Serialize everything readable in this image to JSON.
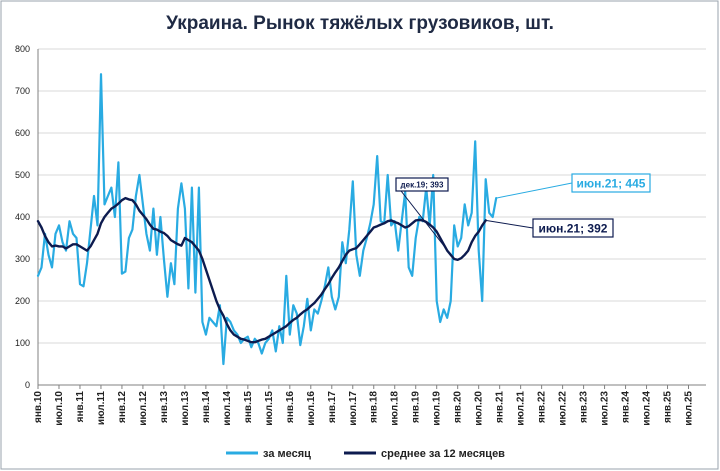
{
  "chart_data": {
    "type": "line",
    "title": "Украина. Рынок тяжёлых грузовиков, шт.",
    "ylim": [
      0,
      800
    ],
    "yticks": [
      "0",
      "100",
      "200",
      "300",
      "400",
      "500",
      "600",
      "700",
      "800"
    ],
    "xticks": [
      "янв.10",
      "июл.10",
      "янв.11",
      "июл.11",
      "янв.12",
      "июл.12",
      "янв.13",
      "июл.13",
      "янв.14",
      "июл.14",
      "янв.15",
      "июл.15",
      "янв.16",
      "июл.16",
      "янв.17",
      "июл.17",
      "янв.18",
      "июл.18",
      "янв.19",
      "июл.19",
      "янв.20",
      "июл.20",
      "янв.21",
      "июл.21",
      "янв.22",
      "июл.22",
      "янв.23",
      "июл.23",
      "янв.24",
      "июл.24",
      "янв.25",
      "июл.25"
    ],
    "x_start": "янв.10",
    "grid": true,
    "legend_position": "bottom",
    "colors": {
      "monthly": "#29abe2",
      "average": "#0d1b4f"
    },
    "series": [
      {
        "name": "за месяц",
        "values": [
          260,
          280,
          360,
          310,
          280,
          360,
          380,
          340,
          320,
          390,
          360,
          350,
          240,
          235,
          290,
          370,
          450,
          380,
          740,
          430,
          450,
          470,
          400,
          530,
          265,
          270,
          350,
          370,
          450,
          500,
          430,
          360,
          320,
          420,
          310,
          400,
          300,
          210,
          290,
          240,
          420,
          480,
          420,
          230,
          470,
          220,
          470,
          150,
          120,
          160,
          150,
          140,
          190,
          50,
          160,
          150,
          130,
          120,
          100,
          110,
          115,
          90,
          110,
          100,
          75,
          100,
          110,
          130,
          80,
          140,
          100,
          260,
          120,
          190,
          170,
          95,
          140,
          205,
          130,
          180,
          170,
          200,
          235,
          280,
          210,
          180,
          210,
          340,
          290,
          370,
          485,
          310,
          260,
          320,
          350,
          385,
          430,
          545,
          390,
          385,
          500,
          380,
          390,
          320,
          390,
          460,
          280,
          260,
          350,
          400,
          390,
          470,
          380,
          500,
          200,
          150,
          180,
          160,
          200,
          380,
          330,
          350,
          430,
          380,
          410,
          580,
          320,
          200,
          490,
          410,
          400,
          445
        ]
      },
      {
        "name": "среднее за 12 месяцев",
        "values": [
          390,
          375,
          355,
          340,
          330,
          332,
          330,
          330,
          325,
          330,
          335,
          335,
          330,
          325,
          320,
          330,
          345,
          360,
          385,
          400,
          410,
          420,
          425,
          432,
          440,
          445,
          442,
          440,
          430,
          415,
          405,
          395,
          382,
          372,
          370,
          365,
          362,
          355,
          345,
          340,
          335,
          332,
          350,
          345,
          340,
          330,
          320,
          300,
          275,
          250,
          225,
          200,
          180,
          165,
          145,
          130,
          120,
          115,
          110,
          108,
          105,
          102,
          102,
          105,
          108,
          110,
          115,
          120,
          125,
          130,
          135,
          140,
          148,
          155,
          160,
          168,
          175,
          180,
          188,
          195,
          205,
          215,
          228,
          240,
          255,
          268,
          280,
          295,
          310,
          320,
          323,
          326,
          335,
          345,
          355,
          365,
          375,
          378,
          382,
          385,
          390,
          392,
          388,
          385,
          380,
          375,
          378,
          385,
          392,
          393,
          392,
          388,
          382,
          375,
          365,
          350,
          335,
          320,
          310,
          300,
          298,
          302,
          310,
          320,
          340,
          355,
          365,
          380,
          392
        ]
      }
    ],
    "annotations": [
      {
        "label": "дек.19; 393",
        "series": "среднее за 12 месяцев"
      },
      {
        "label": "июн.21; 445",
        "series": "за месяц"
      },
      {
        "label": "июн.21; 392",
        "series": "среднее за 12 месяцев"
      }
    ]
  }
}
